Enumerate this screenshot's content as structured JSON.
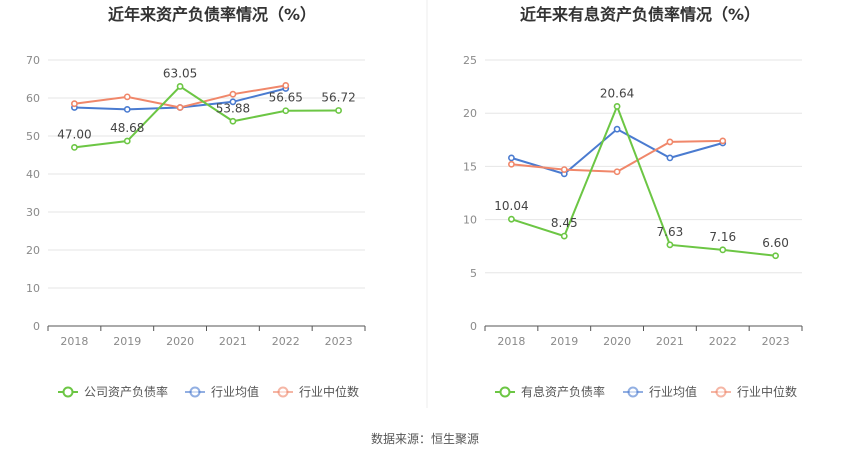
{
  "source_label": "数据来源：恒生聚源",
  "colors": {
    "company": "#6cc644",
    "avg": "#4a7bd0",
    "median": "#f0876a",
    "grid": "#e6e6e6",
    "axis": "#555555"
  },
  "chart_data": [
    {
      "type": "line",
      "title": "近年来资产负债率情况（%）",
      "x": [
        "2018",
        "2019",
        "2020",
        "2021",
        "2022",
        "2023"
      ],
      "ylim": [
        0,
        70
      ],
      "yticks": [
        0,
        10,
        20,
        30,
        40,
        50,
        60,
        70
      ],
      "grid": true,
      "legend_position": "bottom",
      "series": [
        {
          "name": "公司资产负债率",
          "key": "company",
          "values": [
            47.0,
            48.68,
            63.05,
            53.88,
            56.65,
            56.72
          ],
          "labels": [
            "47.00",
            "48.68",
            "63.05",
            "53.88",
            "56.65",
            "56.72"
          ]
        },
        {
          "name": "行业均值",
          "key": "avg",
          "values": [
            57.5,
            57.0,
            57.5,
            59.0,
            62.5,
            null
          ]
        },
        {
          "name": "行业中位数",
          "key": "median",
          "values": [
            58.5,
            60.3,
            57.5,
            61.0,
            63.3,
            null
          ]
        }
      ]
    },
    {
      "type": "line",
      "title": "近年来有息资产负债率情况（%）",
      "x": [
        "2018",
        "2019",
        "2020",
        "2021",
        "2022",
        "2023"
      ],
      "ylim": [
        0,
        25
      ],
      "yticks": [
        0,
        5,
        10,
        15,
        20,
        25
      ],
      "grid": true,
      "legend_position": "bottom",
      "series": [
        {
          "name": "有息资产负债率",
          "key": "company",
          "values": [
            10.04,
            8.45,
            20.64,
            7.63,
            7.16,
            6.6
          ],
          "labels": [
            "10.04",
            "8.45",
            "20.64",
            "7.63",
            "7.16",
            "6.60"
          ]
        },
        {
          "name": "行业均值",
          "key": "avg",
          "values": [
            15.8,
            14.3,
            18.5,
            15.8,
            17.2,
            null
          ]
        },
        {
          "name": "行业中位数",
          "key": "median",
          "values": [
            15.2,
            14.7,
            14.5,
            17.3,
            17.4,
            null
          ]
        }
      ]
    }
  ]
}
